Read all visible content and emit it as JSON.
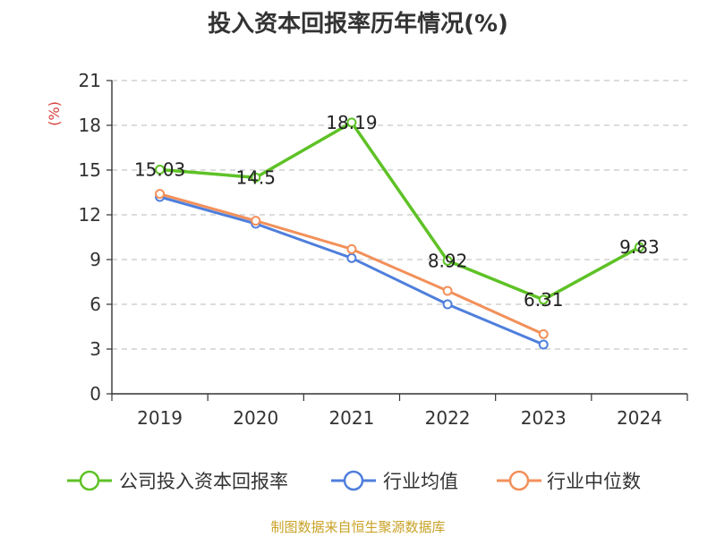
{
  "chart_data": {
    "type": "line",
    "title": "投入资本回报率历年情况(%)",
    "ylabel": "(%)",
    "xlabel": "",
    "categories": [
      "2019",
      "2020",
      "2021",
      "2022",
      "2023",
      "2024"
    ],
    "ylim": [
      0,
      21
    ],
    "yticks": [
      0,
      3,
      6,
      9,
      12,
      15,
      18,
      21
    ],
    "grid": true,
    "legend": "bottom",
    "series": [
      {
        "name": "公司投入资本回报率",
        "color": "#5ec226",
        "values": [
          15.03,
          14.5,
          18.19,
          8.92,
          6.31,
          9.83
        ],
        "labels": [
          "15.03",
          "14.5",
          "18.19",
          "8.92",
          "6.31",
          "9.83"
        ],
        "show_labels": true
      },
      {
        "name": "行业均值",
        "color": "#4f7fdc",
        "values": [
          13.2,
          11.4,
          9.1,
          6.0,
          3.3,
          null
        ],
        "show_labels": false
      },
      {
        "name": "行业中位数",
        "color": "#f2905a",
        "values": [
          13.4,
          11.6,
          9.7,
          6.9,
          4.0,
          null
        ],
        "show_labels": false
      }
    ]
  },
  "source": "制图数据来自恒生聚源数据库"
}
